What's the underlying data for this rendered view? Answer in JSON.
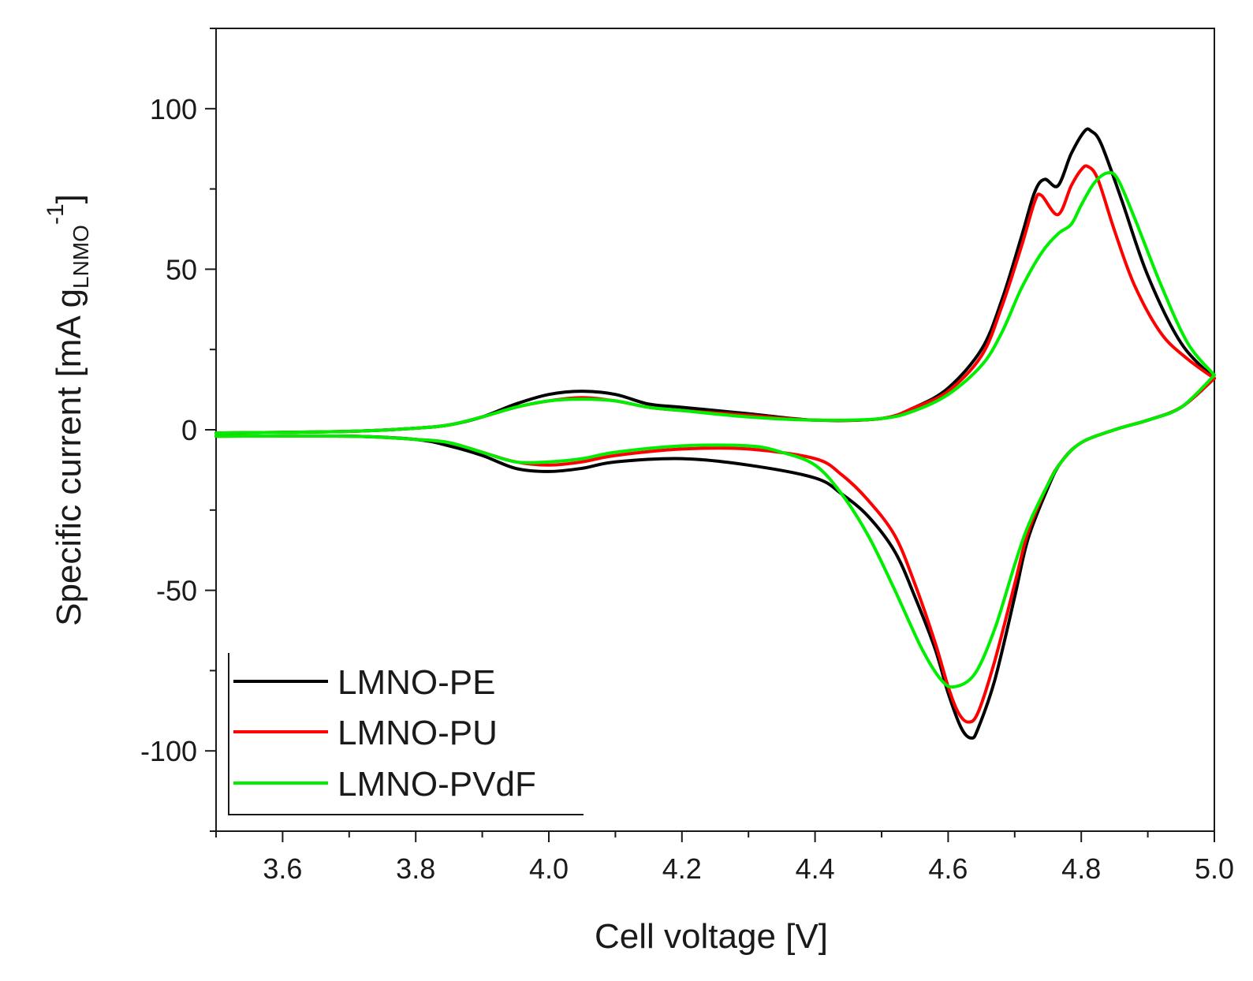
{
  "chart_data": {
    "type": "line",
    "title": "",
    "xlabel": "Cell voltage [V]",
    "ylabel_main": "Specific current  [mA g",
    "ylabel_sub": "LNMO",
    "ylabel_sup": "-1",
    "ylabel_end": "]",
    "xlim": [
      3.5,
      5.0
    ],
    "ylim": [
      -125,
      125
    ],
    "xticks": [
      3.6,
      3.8,
      4.0,
      4.2,
      4.4,
      4.6,
      4.8,
      5.0
    ],
    "xtick_labels": [
      "3.6",
      "3.8",
      "4.0",
      "4.2",
      "4.4",
      "4.6",
      "4.8",
      "5.0"
    ],
    "yticks": [
      -100,
      -50,
      0,
      50,
      100
    ],
    "ytick_labels": [
      "-100",
      "-50",
      "0",
      "50",
      "100"
    ],
    "legend_position": "bottom-left",
    "series": [
      {
        "name": "LMNO-PE",
        "color": "#000000",
        "anodic": [
          [
            3.5,
            -1
          ],
          [
            3.7,
            -0.5
          ],
          [
            3.8,
            0.5
          ],
          [
            3.85,
            1.5
          ],
          [
            3.9,
            4
          ],
          [
            3.95,
            8
          ],
          [
            4.0,
            11
          ],
          [
            4.05,
            12
          ],
          [
            4.1,
            11
          ],
          [
            4.15,
            8
          ],
          [
            4.2,
            7
          ],
          [
            4.3,
            5
          ],
          [
            4.4,
            3
          ],
          [
            4.5,
            3.5
          ],
          [
            4.55,
            7
          ],
          [
            4.6,
            13
          ],
          [
            4.65,
            25
          ],
          [
            4.68,
            40
          ],
          [
            4.71,
            60
          ],
          [
            4.73,
            74
          ],
          [
            4.745,
            78
          ],
          [
            4.765,
            76
          ],
          [
            4.785,
            86
          ],
          [
            4.805,
            93
          ],
          [
            4.815,
            93
          ],
          [
            4.83,
            89
          ],
          [
            4.86,
            72
          ],
          [
            4.9,
            48
          ],
          [
            4.95,
            27
          ],
          [
            5.0,
            16
          ]
        ],
        "cathodic": [
          [
            5.0,
            16
          ],
          [
            4.95,
            7
          ],
          [
            4.9,
            3
          ],
          [
            4.85,
            0
          ],
          [
            4.8,
            -4
          ],
          [
            4.77,
            -10
          ],
          [
            4.75,
            -18
          ],
          [
            4.72,
            -34
          ],
          [
            4.7,
            -52
          ],
          [
            4.67,
            -78
          ],
          [
            4.645,
            -93
          ],
          [
            4.635,
            -96
          ],
          [
            4.62,
            -93
          ],
          [
            4.6,
            -82
          ],
          [
            4.58,
            -68
          ],
          [
            4.55,
            -52
          ],
          [
            4.52,
            -38
          ],
          [
            4.48,
            -27
          ],
          [
            4.44,
            -20
          ],
          [
            4.4,
            -15
          ],
          [
            4.3,
            -11
          ],
          [
            4.2,
            -9
          ],
          [
            4.1,
            -10
          ],
          [
            4.05,
            -12
          ],
          [
            4.0,
            -13
          ],
          [
            3.95,
            -12
          ],
          [
            3.9,
            -8
          ],
          [
            3.85,
            -5
          ],
          [
            3.8,
            -3
          ],
          [
            3.7,
            -2
          ],
          [
            3.5,
            -2
          ]
        ]
      },
      {
        "name": "LMNO-PU",
        "color": "#ff0000",
        "anodic": [
          [
            3.5,
            -1
          ],
          [
            3.7,
            -0.5
          ],
          [
            3.8,
            0.5
          ],
          [
            3.85,
            1.5
          ],
          [
            3.9,
            4
          ],
          [
            3.95,
            7
          ],
          [
            4.0,
            9
          ],
          [
            4.05,
            10
          ],
          [
            4.1,
            9
          ],
          [
            4.15,
            7
          ],
          [
            4.2,
            6
          ],
          [
            4.3,
            4.5
          ],
          [
            4.4,
            3
          ],
          [
            4.5,
            3.5
          ],
          [
            4.55,
            7
          ],
          [
            4.6,
            12
          ],
          [
            4.65,
            23
          ],
          [
            4.68,
            38
          ],
          [
            4.71,
            57
          ],
          [
            4.73,
            71
          ],
          [
            4.74,
            73
          ],
          [
            4.765,
            67
          ],
          [
            4.785,
            76
          ],
          [
            4.8,
            81
          ],
          [
            4.81,
            82
          ],
          [
            4.825,
            78
          ],
          [
            4.85,
            62
          ],
          [
            4.88,
            45
          ],
          [
            4.92,
            30
          ],
          [
            4.96,
            22
          ],
          [
            5.0,
            16
          ]
        ],
        "cathodic": [
          [
            5.0,
            16
          ],
          [
            4.95,
            7
          ],
          [
            4.9,
            3
          ],
          [
            4.85,
            0
          ],
          [
            4.8,
            -4
          ],
          [
            4.77,
            -10
          ],
          [
            4.75,
            -17
          ],
          [
            4.72,
            -32
          ],
          [
            4.7,
            -48
          ],
          [
            4.67,
            -72
          ],
          [
            4.645,
            -88
          ],
          [
            4.63,
            -91
          ],
          [
            4.615,
            -88
          ],
          [
            4.6,
            -80
          ],
          [
            4.58,
            -66
          ],
          [
            4.55,
            -48
          ],
          [
            4.52,
            -33
          ],
          [
            4.48,
            -22
          ],
          [
            4.44,
            -14
          ],
          [
            4.4,
            -9
          ],
          [
            4.3,
            -6
          ],
          [
            4.2,
            -6
          ],
          [
            4.1,
            -8
          ],
          [
            4.05,
            -10
          ],
          [
            4.0,
            -11
          ],
          [
            3.95,
            -10
          ],
          [
            3.9,
            -7
          ],
          [
            3.85,
            -4
          ],
          [
            3.8,
            -3
          ],
          [
            3.7,
            -2
          ],
          [
            3.5,
            -2
          ]
        ]
      },
      {
        "name": "LMNO-PVdF",
        "color": "#00ee00",
        "anodic": [
          [
            3.5,
            -1
          ],
          [
            3.7,
            -0.5
          ],
          [
            3.8,
            0.5
          ],
          [
            3.85,
            1.5
          ],
          [
            3.9,
            4
          ],
          [
            3.95,
            7
          ],
          [
            4.0,
            9
          ],
          [
            4.05,
            9.5
          ],
          [
            4.1,
            9
          ],
          [
            4.15,
            7
          ],
          [
            4.2,
            6
          ],
          [
            4.3,
            4
          ],
          [
            4.4,
            3
          ],
          [
            4.5,
            3.5
          ],
          [
            4.55,
            6
          ],
          [
            4.6,
            11
          ],
          [
            4.65,
            20
          ],
          [
            4.68,
            30
          ],
          [
            4.71,
            44
          ],
          [
            4.74,
            55
          ],
          [
            4.765,
            61
          ],
          [
            4.785,
            64
          ],
          [
            4.8,
            70
          ],
          [
            4.82,
            77
          ],
          [
            4.84,
            80
          ],
          [
            4.855,
            78
          ],
          [
            4.88,
            66
          ],
          [
            4.92,
            45
          ],
          [
            4.96,
            27
          ],
          [
            5.0,
            17
          ]
        ],
        "cathodic": [
          [
            5.0,
            17
          ],
          [
            4.95,
            7
          ],
          [
            4.9,
            3
          ],
          [
            4.85,
            0
          ],
          [
            4.8,
            -4
          ],
          [
            4.77,
            -10
          ],
          [
            4.75,
            -17
          ],
          [
            4.72,
            -30
          ],
          [
            4.7,
            -42
          ],
          [
            4.67,
            -62
          ],
          [
            4.64,
            -76
          ],
          [
            4.61,
            -80
          ],
          [
            4.59,
            -78
          ],
          [
            4.56,
            -68
          ],
          [
            4.52,
            -50
          ],
          [
            4.48,
            -33
          ],
          [
            4.44,
            -20
          ],
          [
            4.4,
            -11
          ],
          [
            4.35,
            -7
          ],
          [
            4.3,
            -5
          ],
          [
            4.2,
            -5
          ],
          [
            4.1,
            -7
          ],
          [
            4.05,
            -9
          ],
          [
            4.0,
            -10
          ],
          [
            3.95,
            -10
          ],
          [
            3.9,
            -7
          ],
          [
            3.85,
            -4
          ],
          [
            3.8,
            -3
          ],
          [
            3.7,
            -2
          ],
          [
            3.5,
            -2
          ]
        ]
      }
    ]
  }
}
